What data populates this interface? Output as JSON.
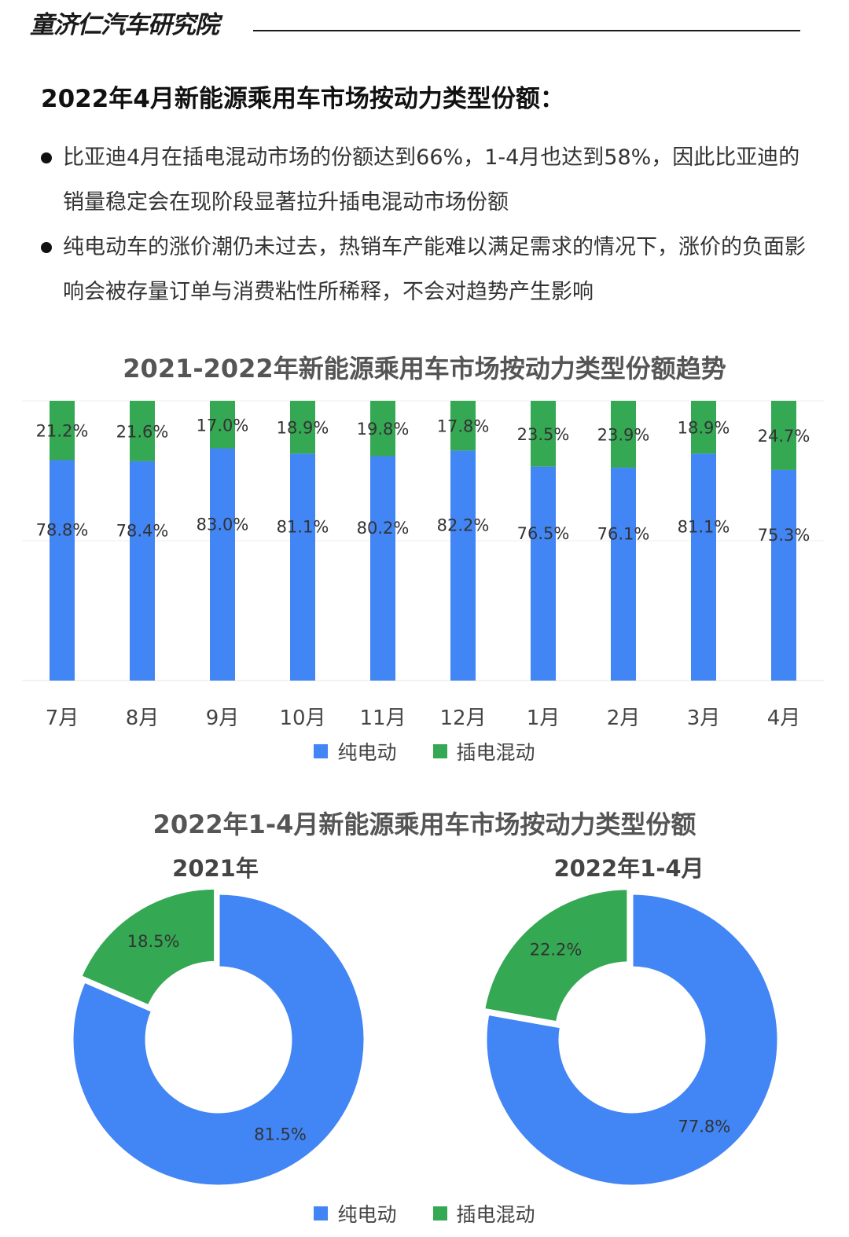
{
  "header": {
    "brand": "童济仁汽车研究院"
  },
  "heading": "2022年4月新能源乘用车市场按动力类型份额：",
  "bullets": [
    "比亚迪4月在插电混动市场的份额达到66%，1-4月也达到58%，因此比亚迪的销量稳定会在现阶段显著拉升插电混动市场份额",
    "纯电动车的涨价潮仍未过去，热销车产能难以满足需求的情况下，涨价的负面影响会被存量订单与消费粘性所稀释，不会对趋势产生影响"
  ],
  "colors": {
    "bev": "#4285f4",
    "phev": "#34a853"
  },
  "legend": [
    "纯电动",
    "插电混动"
  ],
  "chart_data": [
    {
      "type": "bar",
      "stacked": true,
      "title": "2021-2022年新能源乘用车市场按动力类型份额趋势",
      "categories": [
        "7月",
        "8月",
        "9月",
        "10月",
        "11月",
        "12月",
        "1月",
        "2月",
        "3月",
        "4月"
      ],
      "series": [
        {
          "name": "纯电动",
          "values": [
            78.8,
            78.4,
            83.0,
            81.1,
            80.2,
            82.2,
            76.5,
            76.1,
            81.1,
            75.3
          ],
          "labels": [
            "78.8%",
            "78.4%",
            "83.0%",
            "81.1%",
            "80.2%",
            "82.2%",
            "76.5%",
            "76.1%",
            "81.1%",
            "75.3%"
          ]
        },
        {
          "name": "插电混动",
          "values": [
            21.2,
            21.6,
            17.0,
            18.9,
            19.8,
            17.8,
            23.5,
            23.9,
            18.9,
            24.7
          ],
          "labels": [
            "21.2%",
            "21.6%",
            "17.0%",
            "18.9%",
            "19.8%",
            "17.8%",
            "23.5%",
            "23.9%",
            "18.9%",
            "24.7%"
          ]
        }
      ],
      "ylim": [
        0,
        100
      ],
      "grid": true,
      "legend_position": "bottom"
    },
    {
      "type": "pie",
      "donut": true,
      "title": "2022年1-4月新能源乘用车市场按动力类型份额",
      "charts": [
        {
          "title": "2021年",
          "slices": [
            {
              "name": "纯电动",
              "value": 81.5,
              "label": "81.5%"
            },
            {
              "name": "插电混动",
              "value": 18.5,
              "label": "18.5%"
            }
          ]
        },
        {
          "title": "2022年1-4月",
          "slices": [
            {
              "name": "纯电动",
              "value": 77.8,
              "label": "77.8%"
            },
            {
              "name": "插电混动",
              "value": 22.2,
              "label": "22.2%"
            }
          ]
        }
      ],
      "legend_position": "bottom"
    }
  ]
}
